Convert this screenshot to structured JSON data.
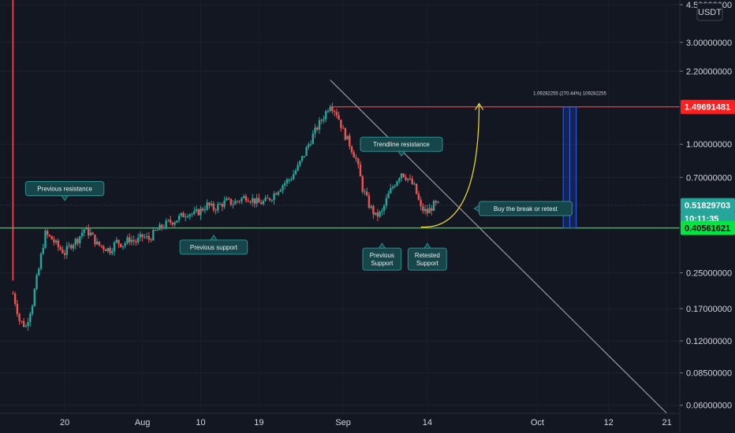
{
  "currency": "USDT",
  "colors": {
    "background": "#131722",
    "up": "#26a69a",
    "down": "#ef5350",
    "resistance_line": "#ff2b2b",
    "support_line": "#2ecc40",
    "trendline": "#9598a1",
    "arrow": "#e5d22a",
    "measure_box": "#2962ff",
    "note_bg": "#16454a",
    "note_border": "#2a8f8f"
  },
  "price_badges": [
    {
      "text": "1.49691481",
      "value": 1.49691481,
      "bg": "#ff1f1f",
      "fg": "#ffffff"
    },
    {
      "text": "0.51829703",
      "value": 0.51829703,
      "bg": "#26a69a",
      "fg": "#ffffff"
    },
    {
      "text": "10:11:35",
      "value": 0.45,
      "bg": "#26a69a",
      "fg": "#ffffff"
    },
    {
      "text": "0.40561621",
      "value": 0.40561621,
      "bg": "#00e640",
      "fg": "#000000"
    }
  ],
  "annotations": [
    {
      "id": "previous-resistance",
      "lines": [
        "Previous resistance"
      ],
      "date": "2020-07-20",
      "price": 0.62,
      "pointer": "down"
    },
    {
      "id": "previous-support",
      "lines": [
        "Previous support"
      ],
      "date": "2020-08-12",
      "price": 0.33,
      "pointer": "up"
    },
    {
      "id": "trendline-resistance",
      "lines": [
        "Trendline resistance"
      ],
      "date": "2020-09-10",
      "price": 1.0,
      "pointer": "down"
    },
    {
      "id": "buy-the-break",
      "lines": [
        "Buy the break or retest"
      ],
      "date": "2020-09-22",
      "price": 0.5,
      "pointer": "left"
    },
    {
      "id": "previous-support-2",
      "lines": [
        "Previous",
        "Support"
      ],
      "date": "2020-09-07",
      "price": 0.29,
      "pointer": "up"
    },
    {
      "id": "retested-support",
      "lines": [
        "Retested",
        "Support"
      ],
      "date": "2020-09-14",
      "price": 0.29,
      "pointer": "up"
    }
  ],
  "measure_label": "1.09282255 (270.44%) 109282255",
  "chart_data": {
    "type": "candlestick",
    "title": "",
    "xlabel": "",
    "ylabel": "",
    "y_scale": "log",
    "ylim": [
      0.055,
      4.5
    ],
    "xlim": [
      "2020-07-10",
      "2020-10-23"
    ],
    "x_tick_labels": [
      {
        "label": "20",
        "date": "2020-07-20"
      },
      {
        "label": "Aug",
        "date": "2020-08-01"
      },
      {
        "label": "10",
        "date": "2020-08-10"
      },
      {
        "label": "19",
        "date": "2020-08-19"
      },
      {
        "label": "Sep",
        "date": "2020-09-01"
      },
      {
        "label": "14",
        "date": "2020-09-14"
      },
      {
        "label": "Oct",
        "date": "2020-10-01"
      },
      {
        "label": "12",
        "date": "2020-10-12"
      },
      {
        "label": "21",
        "date": "2020-10-21"
      }
    ],
    "y_tick_labels": [
      {
        "label": "4.50000000",
        "value": 4.5
      },
      {
        "label": "3.00000000",
        "value": 3.0
      },
      {
        "label": "2.20000000",
        "value": 2.2
      },
      {
        "label": "1.00000000",
        "value": 1.0
      },
      {
        "label": "0.70000000",
        "value": 0.7
      },
      {
        "label": "0.25000000",
        "value": 0.25
      },
      {
        "label": "0.17000000",
        "value": 0.17
      },
      {
        "label": "0.12000000",
        "value": 0.12
      },
      {
        "label": "0.08500000",
        "value": 0.085
      },
      {
        "label": "0.06000000",
        "value": 0.06
      }
    ],
    "horizontal_lines": [
      {
        "name": "resistance",
        "value": 1.49691481,
        "from": "2020-08-30",
        "to": "2020-10-23"
      },
      {
        "name": "support",
        "value": 0.40561621,
        "from": "2020-07-10",
        "to": "2020-10-23"
      }
    ],
    "event_line": {
      "date": "2020-07-12"
    },
    "trendline": {
      "points": [
        [
          "2020-08-30",
          2.0
        ],
        [
          "2020-10-21",
          0.055
        ]
      ]
    },
    "arrow_curve": {
      "from": [
        "2020-09-14",
        0.41
      ],
      "to": [
        "2020-09-22",
        1.55
      ]
    },
    "measure": {
      "date_from": "2020-10-05",
      "date_to": "2020-10-07",
      "low": 0.40561621,
      "high": 1.49691481
    },
    "ohlc_anchors": [
      [
        "2020-07-12",
        0.2
      ],
      [
        "2020-07-13",
        0.15
      ],
      [
        "2020-07-14",
        0.14
      ],
      [
        "2020-07-15",
        0.18
      ],
      [
        "2020-07-16",
        0.26
      ],
      [
        "2020-07-17",
        0.38
      ],
      [
        "2020-07-18",
        0.36
      ],
      [
        "2020-07-19",
        0.33
      ],
      [
        "2020-07-20",
        0.31
      ],
      [
        "2020-07-21",
        0.34
      ],
      [
        "2020-07-22",
        0.36
      ],
      [
        "2020-07-23",
        0.4
      ],
      [
        "2020-07-24",
        0.38
      ],
      [
        "2020-07-25",
        0.34
      ],
      [
        "2020-07-26",
        0.33
      ],
      [
        "2020-07-27",
        0.32
      ],
      [
        "2020-07-28",
        0.35
      ],
      [
        "2020-07-29",
        0.34
      ],
      [
        "2020-07-30",
        0.36
      ],
      [
        "2020-07-31",
        0.35
      ],
      [
        "2020-08-01",
        0.37
      ],
      [
        "2020-08-02",
        0.36
      ],
      [
        "2020-08-03",
        0.39
      ],
      [
        "2020-08-04",
        0.41
      ],
      [
        "2020-08-05",
        0.43
      ],
      [
        "2020-08-06",
        0.44
      ],
      [
        "2020-08-07",
        0.46
      ],
      [
        "2020-08-08",
        0.48
      ],
      [
        "2020-08-09",
        0.47
      ],
      [
        "2020-08-10",
        0.49
      ],
      [
        "2020-08-11",
        0.52
      ],
      [
        "2020-08-12",
        0.5
      ],
      [
        "2020-08-13",
        0.52
      ],
      [
        "2020-08-14",
        0.54
      ],
      [
        "2020-08-15",
        0.53
      ],
      [
        "2020-08-16",
        0.55
      ],
      [
        "2020-08-17",
        0.57
      ],
      [
        "2020-08-18",
        0.55
      ],
      [
        "2020-08-19",
        0.53
      ],
      [
        "2020-08-20",
        0.54
      ],
      [
        "2020-08-21",
        0.57
      ],
      [
        "2020-08-22",
        0.62
      ],
      [
        "2020-08-23",
        0.66
      ],
      [
        "2020-08-24",
        0.7
      ],
      [
        "2020-08-25",
        0.78
      ],
      [
        "2020-08-26",
        0.9
      ],
      [
        "2020-08-27",
        1.05
      ],
      [
        "2020-08-28",
        1.2
      ],
      [
        "2020-08-29",
        1.35
      ],
      [
        "2020-08-30",
        1.55
      ],
      [
        "2020-08-31",
        1.4
      ],
      [
        "2020-09-01",
        1.15
      ],
      [
        "2020-09-02",
        1.0
      ],
      [
        "2020-09-03",
        0.85
      ],
      [
        "2020-09-04",
        0.62
      ],
      [
        "2020-09-05",
        0.52
      ],
      [
        "2020-09-06",
        0.46
      ],
      [
        "2020-09-07",
        0.48
      ],
      [
        "2020-09-08",
        0.58
      ],
      [
        "2020-09-09",
        0.66
      ],
      [
        "2020-09-10",
        0.74
      ],
      [
        "2020-09-11",
        0.69
      ],
      [
        "2020-09-12",
        0.63
      ],
      [
        "2020-09-13",
        0.5
      ],
      [
        "2020-09-14",
        0.48
      ],
      [
        "2020-09-15",
        0.52
      ]
    ]
  }
}
